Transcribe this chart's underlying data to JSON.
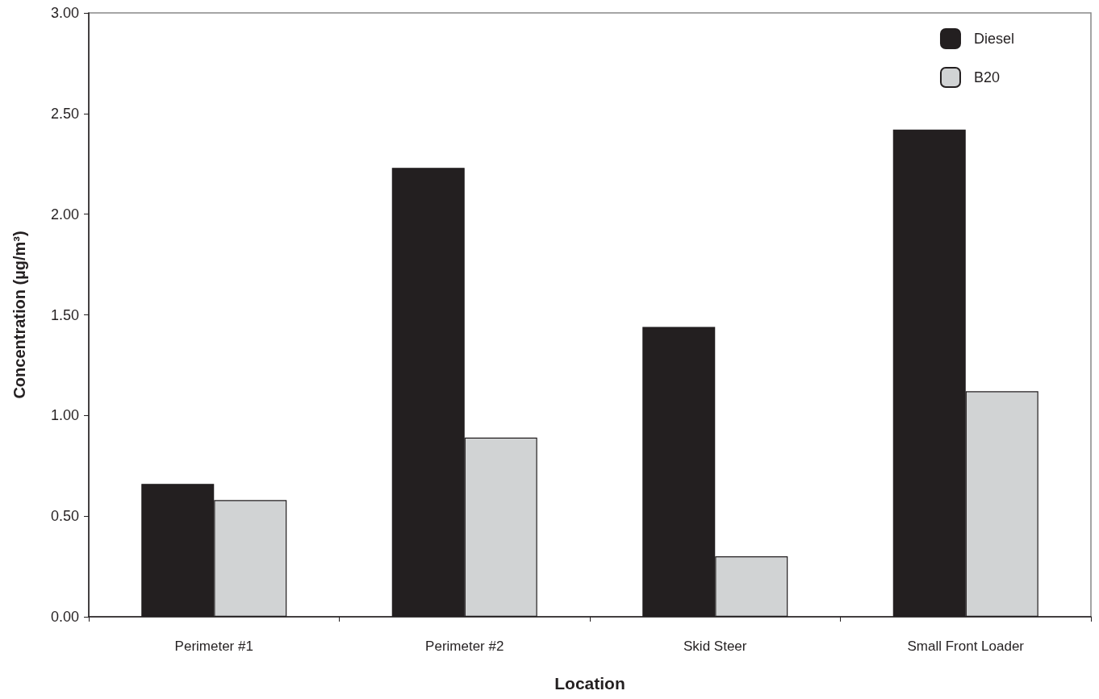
{
  "chart_data": {
    "type": "bar",
    "xlabel": "Location",
    "ylabel": "Concentration (µg/m³)",
    "categories": [
      "Perimeter #1",
      "Perimeter #2",
      "Skid Steer",
      "Small Front Loader"
    ],
    "series": [
      {
        "name": "Diesel",
        "color": "#231f20",
        "values": [
          0.66,
          2.23,
          1.44,
          2.42
        ]
      },
      {
        "name": "B20",
        "color": "#d1d3d4",
        "values": [
          0.58,
          0.89,
          0.3,
          1.12
        ]
      }
    ],
    "ylim": [
      0,
      3
    ],
    "yticks": [
      {
        "value": 0,
        "label": "0.00"
      },
      {
        "value": 0.5,
        "label": "0.50"
      },
      {
        "value": 1,
        "label": "1.00"
      },
      {
        "value": 1.5,
        "label": "1.50"
      },
      {
        "value": 2,
        "label": "2.00"
      },
      {
        "value": 2.5,
        "label": "2.50"
      },
      {
        "value": 3,
        "label": "3.00"
      }
    ],
    "grid": false,
    "legend": "top right"
  }
}
